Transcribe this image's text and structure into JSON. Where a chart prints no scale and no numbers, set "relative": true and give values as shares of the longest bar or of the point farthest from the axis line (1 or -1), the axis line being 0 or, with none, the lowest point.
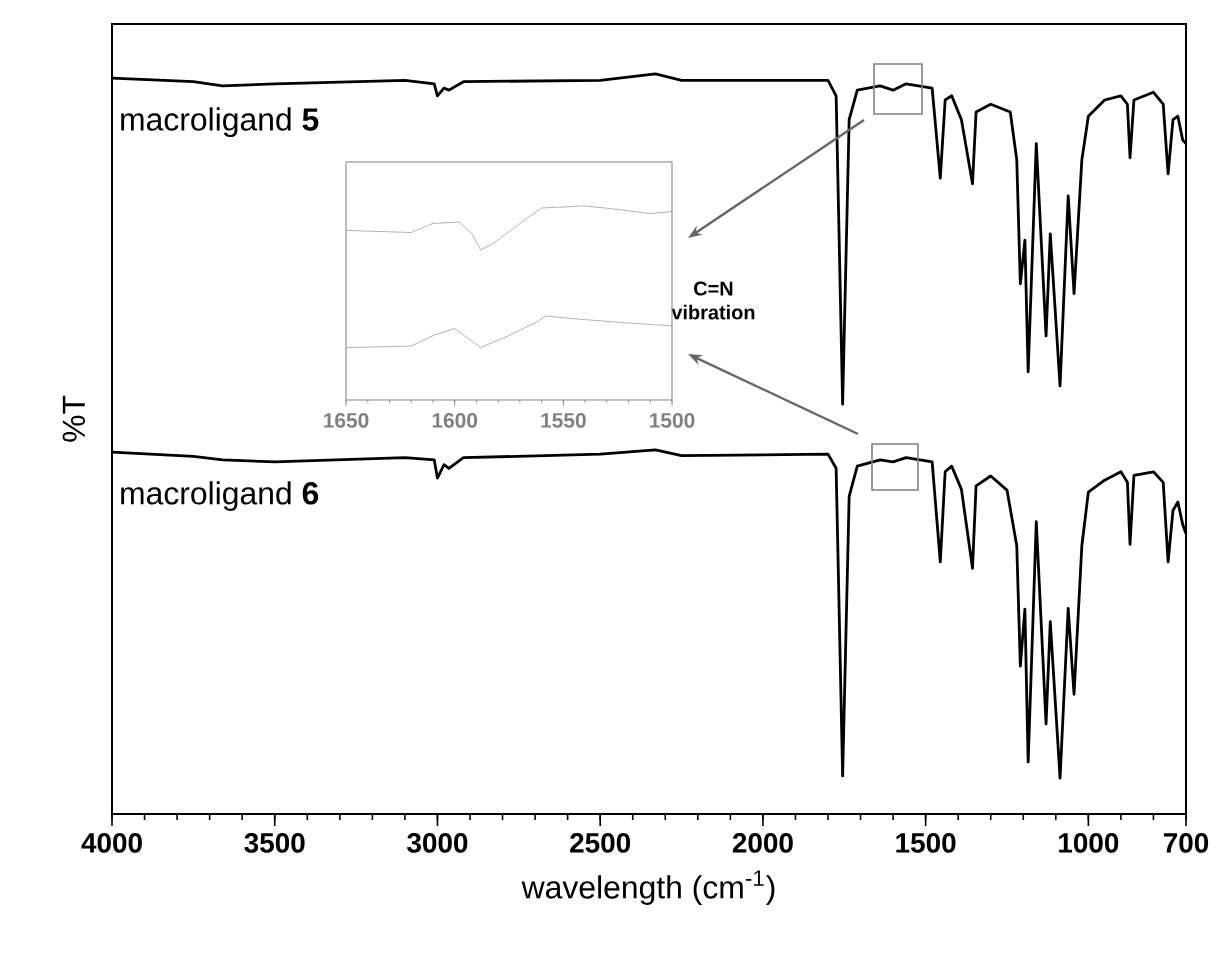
{
  "chart_data": [
    {
      "type": "line",
      "relative": true,
      "xlabel": "wavelength (cm$^{-1}$)",
      "ylabel": "%T",
      "xlim": [
        4000,
        700
      ],
      "xticks": [
        4000,
        3500,
        3000,
        2500,
        2000,
        1500,
        1000,
        700
      ],
      "tick_labels": "x",
      "legend": false,
      "annotations": [
        "C=N vibration"
      ],
      "series": [
        {
          "name": "macroligand **5**",
          "color": "#000000",
          "x": [
            4000,
            3750,
            3660,
            3500,
            3100,
            3010,
            3000,
            2980,
            2965,
            2920,
            2500,
            2330,
            2250,
            1800,
            1775,
            1755,
            1735,
            1710,
            1640,
            1600,
            1560,
            1480,
            1455,
            1440,
            1420,
            1390,
            1356,
            1345,
            1300,
            1240,
            1220,
            1209,
            1195,
            1185,
            1160,
            1130,
            1117,
            1087,
            1062,
            1044,
            1020,
            1000,
            950,
            900,
            880,
            872,
            860,
            800,
            770,
            755,
            740,
            725,
            710,
            700
          ],
          "values": [
            0.994,
            0.989,
            0.983,
            0.986,
            0.991,
            0.986,
            0.969,
            0.98,
            0.977,
            0.989,
            0.991,
            1.0,
            0.991,
            0.991,
            0.969,
            0.531,
            0.935,
            0.977,
            0.983,
            0.977,
            0.986,
            0.98,
            0.852,
            0.963,
            0.969,
            0.935,
            0.844,
            0.946,
            0.957,
            0.946,
            0.878,
            0.702,
            0.764,
            0.577,
            0.901,
            0.628,
            0.773,
            0.557,
            0.827,
            0.688,
            0.878,
            0.94,
            0.963,
            0.969,
            0.957,
            0.881,
            0.963,
            0.974,
            0.957,
            0.858,
            0.935,
            0.94,
            0.906,
            0.901
          ]
        },
        {
          "name": "macroligand **6**",
          "color": "#000000",
          "x": [
            4000,
            3750,
            3660,
            3500,
            3100,
            3010,
            3000,
            2980,
            2965,
            2920,
            2500,
            2330,
            2250,
            1800,
            1775,
            1755,
            1735,
            1710,
            1640,
            1600,
            1560,
            1480,
            1455,
            1440,
            1420,
            1390,
            1356,
            1345,
            1300,
            1250,
            1220,
            1209,
            1195,
            1185,
            1160,
            1130,
            1117,
            1087,
            1062,
            1044,
            1020,
            1000,
            950,
            900,
            880,
            872,
            860,
            800,
            770,
            755,
            740,
            725,
            710,
            700
          ],
          "values": [
            0.463,
            0.457,
            0.452,
            0.449,
            0.455,
            0.452,
            0.426,
            0.445,
            0.44,
            0.455,
            0.46,
            0.466,
            0.458,
            0.46,
            0.44,
            0.003,
            0.4,
            0.443,
            0.452,
            0.449,
            0.455,
            0.449,
            0.307,
            0.435,
            0.443,
            0.41,
            0.298,
            0.415,
            0.429,
            0.409,
            0.33,
            0.159,
            0.24,
            0.023,
            0.364,
            0.077,
            0.222,
            0.0,
            0.241,
            0.119,
            0.33,
            0.406,
            0.423,
            0.435,
            0.42,
            0.332,
            0.43,
            0.435,
            0.42,
            0.307,
            0.38,
            0.392,
            0.36,
            0.347
          ]
        }
      ]
    },
    {
      "type": "line",
      "relative": true,
      "xlim": [
        1650,
        1500
      ],
      "xticks": [
        1650,
        1600,
        1550,
        1500
      ],
      "tick_labels": "x",
      "legend": false,
      "series": [
        {
          "color": "#808080",
          "x": [
            1650,
            1620,
            1610,
            1598,
            1592,
            1588,
            1582,
            1570,
            1560,
            1540,
            1525,
            1510,
            1500
          ],
          "values": [
            0.827,
            0.812,
            0.876,
            0.886,
            0.802,
            0.688,
            0.738,
            0.876,
            0.985,
            1.0,
            0.975,
            0.946,
            0.96
          ]
        },
        {
          "color": "#808080",
          "x": [
            1650,
            1620,
            1610,
            1600,
            1588,
            1575,
            1562,
            1558,
            1545,
            1520,
            1500
          ],
          "values": [
            0.0,
            0.01,
            0.084,
            0.134,
            0.0,
            0.084,
            0.183,
            0.223,
            0.203,
            0.173,
            0.153
          ]
        }
      ]
    }
  ]
}
